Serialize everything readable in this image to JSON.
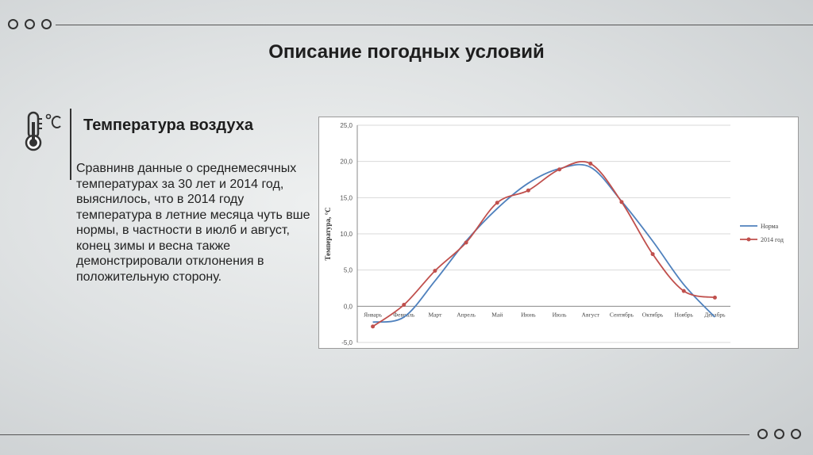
{
  "header": {
    "title": "Описание погодных условий"
  },
  "section": {
    "title": "Температура воздуха",
    "icon": "thermometer-celsius-icon",
    "text": "Сравнинв данные о среднемесячных температурах за 30 лет и 2014 год, выяснилось, что в 2014 году температура в летние месяца чуть вше нормы, в частности  в июлб и август, конец зимы и весна также демонстрировали отклонения в положительную сторону."
  },
  "chart_data": {
    "type": "line",
    "ylabel": "Температура, °С",
    "xlabel": "",
    "title": "",
    "ylim": [
      -5,
      25
    ],
    "yticks": [
      "-5,0",
      "0,0",
      "5,0",
      "10,0",
      "15,0",
      "20,0",
      "25,0"
    ],
    "ytick_values": [
      -5,
      0,
      5,
      10,
      15,
      20,
      25
    ],
    "categories": [
      "Январь",
      "Февраль",
      "Март",
      "Апрель",
      "Май",
      "Июнь",
      "Июль",
      "Август",
      "Сентябрь",
      "Октябрь",
      "Ноябрь",
      "Декабрь"
    ],
    "grid": "horizontal",
    "legend_position": "right",
    "series": [
      {
        "name": "Норма",
        "color": "#4f81bd",
        "markers": false,
        "values": [
          -2.2,
          -1.5,
          3.5,
          9.0,
          13.5,
          17.0,
          19.0,
          19.2,
          14.5,
          9.0,
          3.0,
          -1.5
        ]
      },
      {
        "name": "2014 год",
        "color": "#c0504d",
        "markers": true,
        "values": [
          -2.8,
          0.2,
          4.9,
          8.8,
          14.3,
          16.0,
          18.9,
          19.7,
          14.4,
          7.2,
          2.1,
          1.2
        ]
      }
    ]
  }
}
